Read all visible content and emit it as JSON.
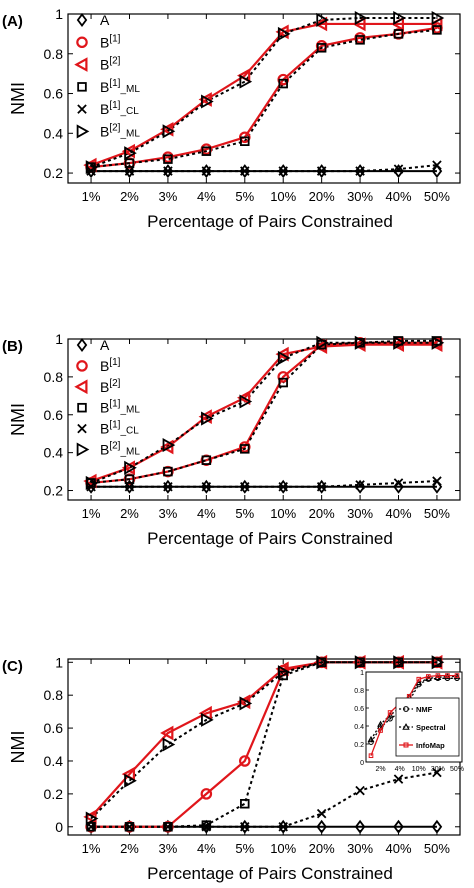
{
  "chart_data": [
    {
      "type": "line",
      "panel_label": "(A)",
      "title": "",
      "xlabel": "Percentage of Pairs Constrained",
      "ylabel": "NMI",
      "categories": [
        "1%",
        "2%",
        "3%",
        "4%",
        "5%",
        "10%",
        "20%",
        "30%",
        "40%",
        "50%"
      ],
      "yticks": [
        "0.2",
        "0.4",
        "0.6",
        "0.8",
        "1"
      ],
      "ylim": [
        0.15,
        1.0
      ],
      "grid": false,
      "legend_position": "top-left",
      "series": [
        {
          "name": "A",
          "marker": "diamond",
          "color": "#000000",
          "dash": "solid",
          "values": [
            0.21,
            0.21,
            0.21,
            0.21,
            0.21,
            0.21,
            0.21,
            0.21,
            0.21,
            0.21
          ]
        },
        {
          "name": "B",
          "sup": "[1]",
          "sub": "",
          "marker": "circle",
          "color": "#e0161b",
          "dash": "solid",
          "values": [
            0.23,
            0.25,
            0.28,
            0.32,
            0.38,
            0.67,
            0.84,
            0.88,
            0.9,
            0.93
          ]
        },
        {
          "name": "B",
          "sup": "[2]",
          "sub": "",
          "marker": "triangle-left",
          "color": "#e0161b",
          "dash": "solid",
          "values": [
            0.24,
            0.31,
            0.42,
            0.57,
            0.69,
            0.91,
            0.95,
            0.95,
            0.95,
            0.95
          ]
        },
        {
          "name": "B",
          "sup": "[1]",
          "sub": "_ML",
          "marker": "square",
          "color": "#000000",
          "dash": "dotted",
          "values": [
            0.23,
            0.25,
            0.27,
            0.31,
            0.36,
            0.65,
            0.83,
            0.87,
            0.9,
            0.92
          ]
        },
        {
          "name": "B",
          "sup": "[1]",
          "sub": "_CL",
          "marker": "x",
          "color": "#000000",
          "dash": "dotted",
          "values": [
            0.21,
            0.21,
            0.21,
            0.21,
            0.21,
            0.21,
            0.21,
            0.21,
            0.22,
            0.24
          ]
        },
        {
          "name": "B",
          "sup": "[2]",
          "sub": "_ML",
          "marker": "triangle-right",
          "color": "#000000",
          "dash": "dotted",
          "values": [
            0.23,
            0.3,
            0.41,
            0.56,
            0.66,
            0.9,
            0.97,
            0.98,
            0.98,
            0.98
          ]
        }
      ]
    },
    {
      "type": "line",
      "panel_label": "(B)",
      "title": "",
      "xlabel": "Percentage of Pairs Constrained",
      "ylabel": "NMI",
      "categories": [
        "1%",
        "2%",
        "3%",
        "4%",
        "5%",
        "10%",
        "20%",
        "30%",
        "40%",
        "50%"
      ],
      "yticks": [
        "0.2",
        "0.4",
        "0.6",
        "0.8",
        "1"
      ],
      "ylim": [
        0.15,
        1.0
      ],
      "grid": false,
      "legend_position": "top-left",
      "series": [
        {
          "name": "A",
          "marker": "diamond",
          "color": "#000000",
          "dash": "solid",
          "values": [
            0.22,
            0.22,
            0.22,
            0.22,
            0.22,
            0.22,
            0.22,
            0.22,
            0.22,
            0.22
          ]
        },
        {
          "name": "B",
          "sup": "[1]",
          "sub": "",
          "marker": "circle",
          "color": "#e0161b",
          "dash": "solid",
          "values": [
            0.24,
            0.26,
            0.3,
            0.36,
            0.43,
            0.8,
            0.97,
            0.98,
            0.98,
            0.98
          ]
        },
        {
          "name": "B",
          "sup": "[2]",
          "sub": "",
          "marker": "triangle-left",
          "color": "#e0161b",
          "dash": "solid",
          "values": [
            0.25,
            0.32,
            0.43,
            0.59,
            0.69,
            0.92,
            0.96,
            0.97,
            0.97,
            0.97
          ]
        },
        {
          "name": "B",
          "sup": "[1]",
          "sub": "_ML",
          "marker": "square",
          "color": "#000000",
          "dash": "dotted",
          "values": [
            0.24,
            0.26,
            0.3,
            0.36,
            0.42,
            0.77,
            0.97,
            0.98,
            0.99,
            0.99
          ]
        },
        {
          "name": "B",
          "sup": "[1]",
          "sub": "_CL",
          "marker": "x",
          "color": "#000000",
          "dash": "dotted",
          "values": [
            0.22,
            0.22,
            0.22,
            0.22,
            0.22,
            0.22,
            0.22,
            0.23,
            0.24,
            0.25
          ]
        },
        {
          "name": "B",
          "sup": "[2]",
          "sub": "_ML",
          "marker": "triangle-right",
          "color": "#000000",
          "dash": "dotted",
          "values": [
            0.24,
            0.32,
            0.44,
            0.58,
            0.67,
            0.9,
            0.98,
            0.98,
            0.98,
            0.98
          ]
        }
      ]
    },
    {
      "type": "line",
      "panel_label": "(C)",
      "title": "",
      "xlabel": "Percentage of Pairs Constrained",
      "ylabel": "NMI",
      "categories": [
        "1%",
        "2%",
        "3%",
        "4%",
        "5%",
        "10%",
        "20%",
        "30%",
        "40%",
        "50%"
      ],
      "yticks": [
        "0",
        "0.2",
        "0.4",
        "0.6",
        "0.8",
        "1"
      ],
      "ylim": [
        -0.05,
        1.02
      ],
      "grid": false,
      "legend_position": "none",
      "series": [
        {
          "marker": "diamond",
          "color": "#000000",
          "dash": "solid",
          "values": [
            0.0,
            0.0,
            0.0,
            0.0,
            0.0,
            0.0,
            0.0,
            0.0,
            0.0,
            0.0
          ]
        },
        {
          "marker": "circle",
          "color": "#e0161b",
          "dash": "solid",
          "values": [
            0.0,
            0.0,
            0.0,
            0.2,
            0.4,
            0.95,
            1.0,
            1.0,
            1.0,
            1.0
          ]
        },
        {
          "marker": "triangle-left",
          "color": "#e0161b",
          "dash": "solid",
          "values": [
            0.06,
            0.32,
            0.57,
            0.69,
            0.76,
            0.96,
            1.0,
            1.0,
            1.0,
            1.0
          ]
        },
        {
          "marker": "square",
          "color": "#000000",
          "dash": "dotted",
          "values": [
            0.0,
            0.0,
            0.0,
            0.01,
            0.14,
            0.92,
            1.0,
            1.0,
            1.0,
            1.0
          ]
        },
        {
          "marker": "x",
          "color": "#000000",
          "dash": "dotted",
          "values": [
            0.0,
            0.0,
            0.0,
            0.0,
            0.0,
            0.0,
            0.08,
            0.22,
            0.29,
            0.33
          ]
        },
        {
          "marker": "triangle-right",
          "color": "#000000",
          "dash": "dotted",
          "values": [
            0.05,
            0.28,
            0.5,
            0.65,
            0.75,
            0.94,
            1.0,
            1.0,
            1.0,
            1.0
          ]
        }
      ],
      "inset": {
        "categories": [
          "",
          "2%",
          "",
          "4%",
          "",
          "10%",
          "",
          "30%",
          "",
          "50%"
        ],
        "yticks": [
          "0",
          "0.2",
          "0.4",
          "0.6",
          "0.8",
          "1"
        ],
        "ylim": [
          0,
          1.0
        ],
        "legend_position": "bottom-right",
        "series": [
          {
            "name": "NMF",
            "marker": "circle",
            "color": "#000000",
            "dash": "dotted",
            "values": [
              0.22,
              0.38,
              0.48,
              0.55,
              0.68,
              0.86,
              0.92,
              0.93,
              0.93,
              0.93
            ]
          },
          {
            "name": "Spectral",
            "marker": "triangle-up",
            "color": "#000000",
            "dash": "dotted",
            "values": [
              0.25,
              0.42,
              0.52,
              0.6,
              0.72,
              0.88,
              0.93,
              0.94,
              0.95,
              0.95
            ]
          },
          {
            "name": "InfoMap",
            "marker": "square",
            "color": "#e0161b",
            "dash": "solid",
            "values": [
              0.07,
              0.35,
              0.55,
              0.65,
              0.73,
              0.92,
              0.95,
              0.96,
              0.96,
              0.96
            ]
          }
        ]
      }
    }
  ]
}
